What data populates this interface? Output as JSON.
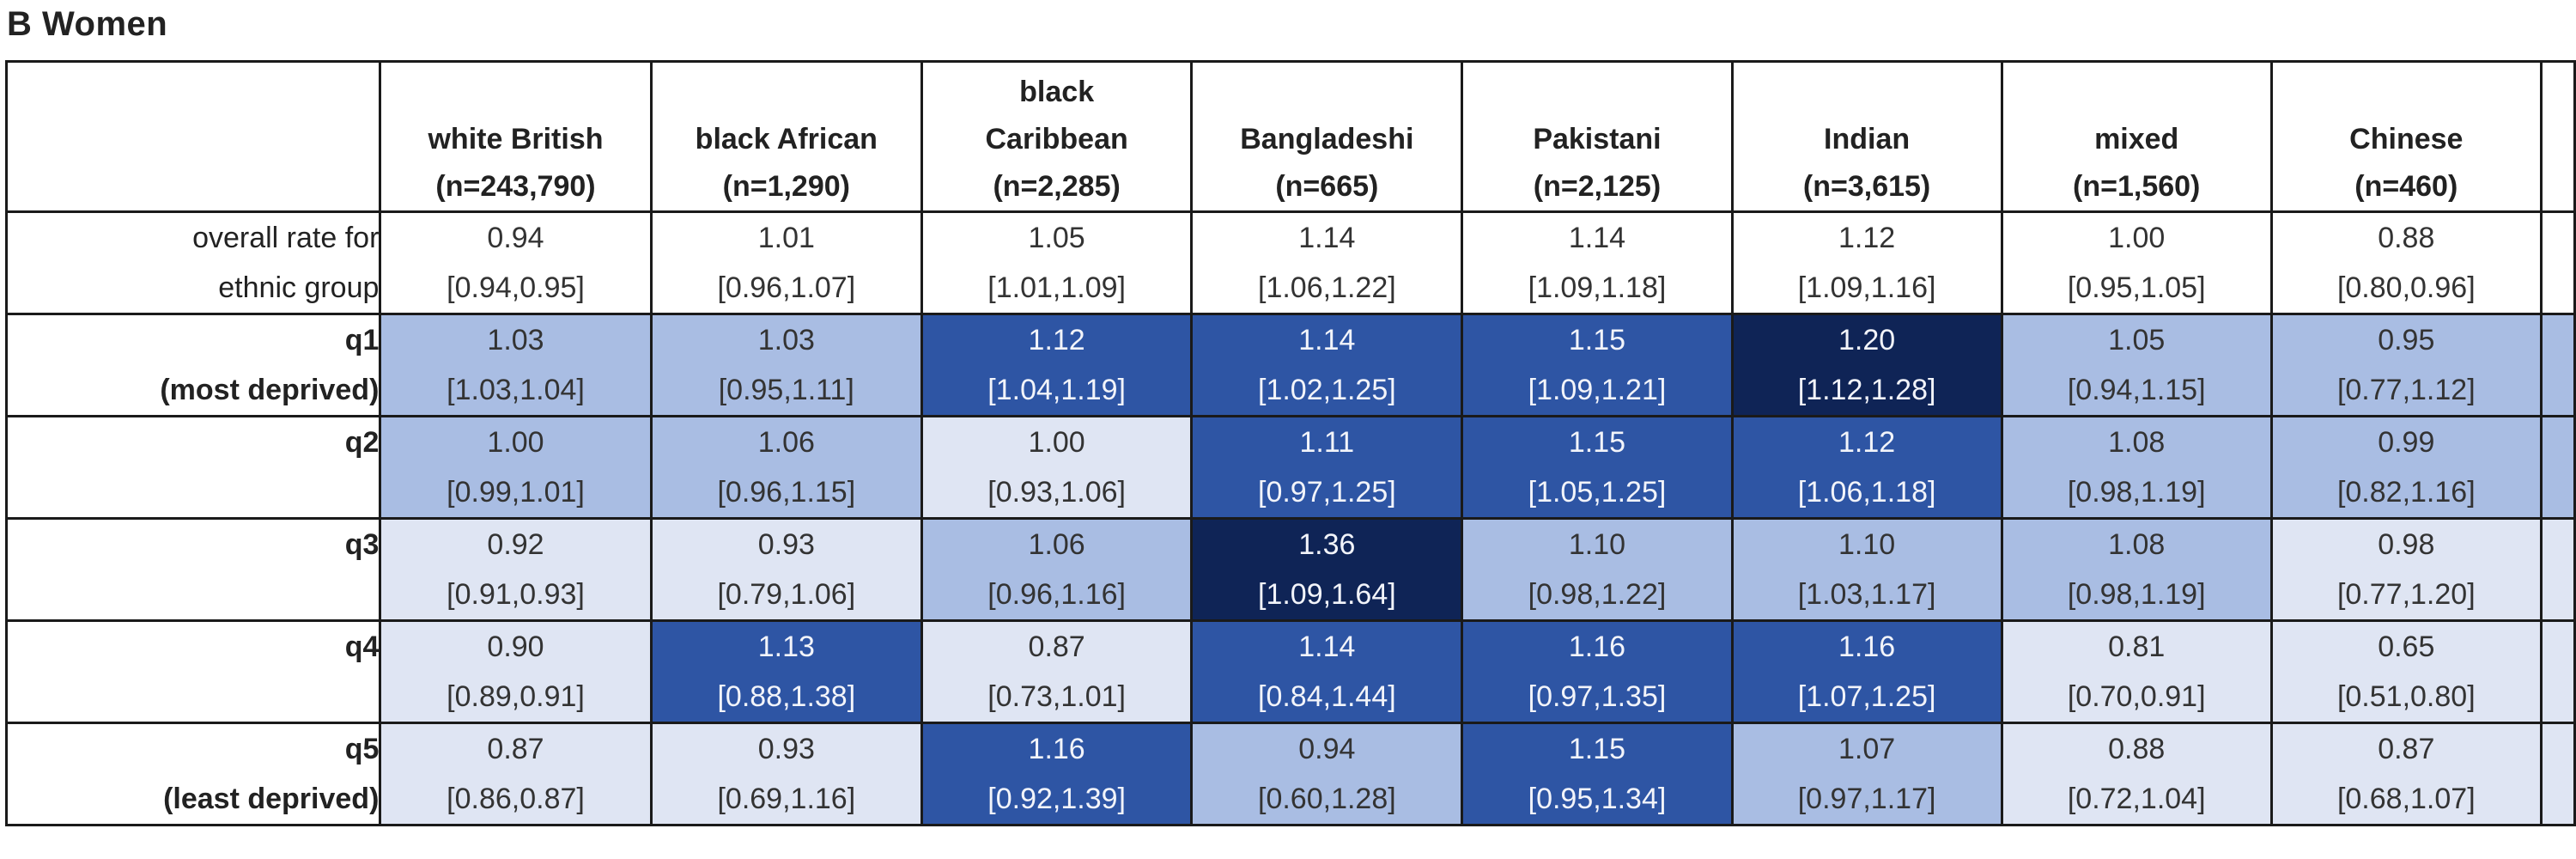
{
  "panel_title": "B  Women",
  "chart_data": {
    "type": "table",
    "columns": [
      {
        "line1": "",
        "line2": "white British",
        "line3": "(n=243,790)"
      },
      {
        "line1": "",
        "line2": "black African",
        "line3": "(n=1,290)"
      },
      {
        "line1": "black",
        "line2": "Caribbean",
        "line3": "(n=2,285)"
      },
      {
        "line1": "",
        "line2": "Bangladeshi",
        "line3": "(n=665)"
      },
      {
        "line1": "",
        "line2": "Pakistani",
        "line3": "(n=2,125)"
      },
      {
        "line1": "",
        "line2": "Indian",
        "line3": "(n=3,615)"
      },
      {
        "line1": "",
        "line2": "mixed",
        "line3": "(n=1,560)"
      },
      {
        "line1": "",
        "line2": "Chinese",
        "line3": "(n=460)"
      }
    ],
    "rows": [
      {
        "label1": "overall rate for",
        "label2": "ethnic group",
        "bold": false,
        "cells": [
          {
            "value": "0.94",
            "ci": "[0.94,0.95]",
            "shade": 0
          },
          {
            "value": "1.01",
            "ci": "[0.96,1.07]",
            "shade": 0
          },
          {
            "value": "1.05",
            "ci": "[1.01,1.09]",
            "shade": 0
          },
          {
            "value": "1.14",
            "ci": "[1.06,1.22]",
            "shade": 0
          },
          {
            "value": "1.14",
            "ci": "[1.09,1.18]",
            "shade": 0
          },
          {
            "value": "1.12",
            "ci": "[1.09,1.16]",
            "shade": 0
          },
          {
            "value": "1.00",
            "ci": "[0.95,1.05]",
            "shade": 0
          },
          {
            "value": "0.88",
            "ci": "[0.80,0.96]",
            "shade": 0
          }
        ]
      },
      {
        "label1": "q1",
        "label2": "(most deprived)",
        "bold": true,
        "cells": [
          {
            "value": "1.03",
            "ci": "[1.03,1.04]",
            "shade": 2
          },
          {
            "value": "1.03",
            "ci": "[0.95,1.11]",
            "shade": 2
          },
          {
            "value": "1.12",
            "ci": "[1.04,1.19]",
            "shade": 3
          },
          {
            "value": "1.14",
            "ci": "[1.02,1.25]",
            "shade": 3
          },
          {
            "value": "1.15",
            "ci": "[1.09,1.21]",
            "shade": 3
          },
          {
            "value": "1.20",
            "ci": "[1.12,1.28]",
            "shade": 5
          },
          {
            "value": "1.05",
            "ci": "[0.94,1.15]",
            "shade": 2
          },
          {
            "value": "0.95",
            "ci": "[0.77,1.12]",
            "shade": 2
          }
        ]
      },
      {
        "label1": "q2",
        "label2": "",
        "bold": true,
        "cells": [
          {
            "value": "1.00",
            "ci": "[0.99,1.01]",
            "shade": 2
          },
          {
            "value": "1.06",
            "ci": "[0.96,1.15]",
            "shade": 2
          },
          {
            "value": "1.00",
            "ci": "[0.93,1.06]",
            "shade": 1
          },
          {
            "value": "1.11",
            "ci": "[0.97,1.25]",
            "shade": 3
          },
          {
            "value": "1.15",
            "ci": "[1.05,1.25]",
            "shade": 3
          },
          {
            "value": "1.12",
            "ci": "[1.06,1.18]",
            "shade": 3
          },
          {
            "value": "1.08",
            "ci": "[0.98,1.19]",
            "shade": 2
          },
          {
            "value": "0.99",
            "ci": "[0.82,1.16]",
            "shade": 2
          }
        ]
      },
      {
        "label1": "q3",
        "label2": "",
        "bold": true,
        "cells": [
          {
            "value": "0.92",
            "ci": "[0.91,0.93]",
            "shade": 1
          },
          {
            "value": "0.93",
            "ci": "[0.79,1.06]",
            "shade": 1
          },
          {
            "value": "1.06",
            "ci": "[0.96,1.16]",
            "shade": 2
          },
          {
            "value": "1.36",
            "ci": "[1.09,1.64]",
            "shade": 5
          },
          {
            "value": "1.10",
            "ci": "[0.98,1.22]",
            "shade": 2
          },
          {
            "value": "1.10",
            "ci": "[1.03,1.17]",
            "shade": 2
          },
          {
            "value": "1.08",
            "ci": "[0.98,1.19]",
            "shade": 2
          },
          {
            "value": "0.98",
            "ci": "[0.77,1.20]",
            "shade": 1
          }
        ]
      },
      {
        "label1": "q4",
        "label2": "",
        "bold": true,
        "cells": [
          {
            "value": "0.90",
            "ci": "[0.89,0.91]",
            "shade": 1
          },
          {
            "value": "1.13",
            "ci": "[0.88,1.38]",
            "shade": 3
          },
          {
            "value": "0.87",
            "ci": "[0.73,1.01]",
            "shade": 1
          },
          {
            "value": "1.14",
            "ci": "[0.84,1.44]",
            "shade": 3
          },
          {
            "value": "1.16",
            "ci": "[0.97,1.35]",
            "shade": 3
          },
          {
            "value": "1.16",
            "ci": "[1.07,1.25]",
            "shade": 3
          },
          {
            "value": "0.81",
            "ci": "[0.70,0.91]",
            "shade": 1
          },
          {
            "value": "0.65",
            "ci": "[0.51,0.80]",
            "shade": 1
          }
        ]
      },
      {
        "label1": "q5",
        "label2": "(least deprived)",
        "bold": true,
        "cells": [
          {
            "value": "0.87",
            "ci": "[0.86,0.87]",
            "shade": 1
          },
          {
            "value": "0.93",
            "ci": "[0.69,1.16]",
            "shade": 1
          },
          {
            "value": "1.16",
            "ci": "[0.92,1.39]",
            "shade": 3
          },
          {
            "value": "0.94",
            "ci": "[0.60,1.28]",
            "shade": 2
          },
          {
            "value": "1.15",
            "ci": "[0.95,1.34]",
            "shade": 3
          },
          {
            "value": "1.07",
            "ci": "[0.97,1.17]",
            "shade": 2
          },
          {
            "value": "0.88",
            "ci": "[0.72,1.04]",
            "shade": 1
          },
          {
            "value": "0.87",
            "ci": "[0.68,1.07]",
            "shade": 1
          }
        ]
      }
    ]
  }
}
